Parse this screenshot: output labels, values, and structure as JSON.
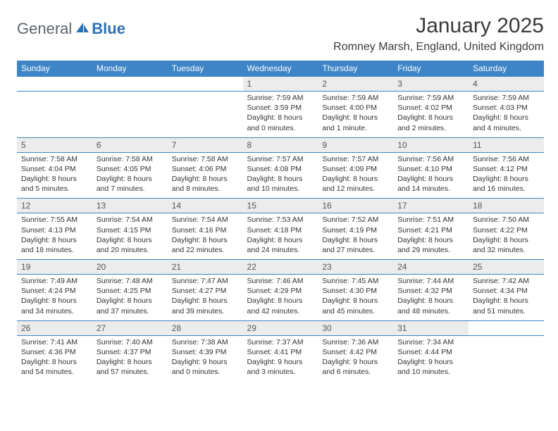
{
  "logo": {
    "part1": "General",
    "part2": "Blue"
  },
  "title": "January 2025",
  "location": "Romney Marsh, England, United Kingdom",
  "colors": {
    "header_bg": "#3d85c6",
    "header_text": "#ffffff",
    "daynum_bg": "#ececec",
    "border": "#3d85c6",
    "text": "#333333",
    "logo_gray": "#5a6670",
    "logo_blue": "#2d70b3"
  },
  "day_headers": [
    "Sunday",
    "Monday",
    "Tuesday",
    "Wednesday",
    "Thursday",
    "Friday",
    "Saturday"
  ],
  "weeks": [
    [
      null,
      null,
      null,
      {
        "n": "1",
        "sr": "7:59 AM",
        "ss": "3:59 PM",
        "dl": "8 hours and 0 minutes."
      },
      {
        "n": "2",
        "sr": "7:59 AM",
        "ss": "4:00 PM",
        "dl": "8 hours and 1 minute."
      },
      {
        "n": "3",
        "sr": "7:59 AM",
        "ss": "4:02 PM",
        "dl": "8 hours and 2 minutes."
      },
      {
        "n": "4",
        "sr": "7:59 AM",
        "ss": "4:03 PM",
        "dl": "8 hours and 4 minutes."
      }
    ],
    [
      {
        "n": "5",
        "sr": "7:58 AM",
        "ss": "4:04 PM",
        "dl": "8 hours and 5 minutes."
      },
      {
        "n": "6",
        "sr": "7:58 AM",
        "ss": "4:05 PM",
        "dl": "8 hours and 7 minutes."
      },
      {
        "n": "7",
        "sr": "7:58 AM",
        "ss": "4:06 PM",
        "dl": "8 hours and 8 minutes."
      },
      {
        "n": "8",
        "sr": "7:57 AM",
        "ss": "4:08 PM",
        "dl": "8 hours and 10 minutes."
      },
      {
        "n": "9",
        "sr": "7:57 AM",
        "ss": "4:09 PM",
        "dl": "8 hours and 12 minutes."
      },
      {
        "n": "10",
        "sr": "7:56 AM",
        "ss": "4:10 PM",
        "dl": "8 hours and 14 minutes."
      },
      {
        "n": "11",
        "sr": "7:56 AM",
        "ss": "4:12 PM",
        "dl": "8 hours and 16 minutes."
      }
    ],
    [
      {
        "n": "12",
        "sr": "7:55 AM",
        "ss": "4:13 PM",
        "dl": "8 hours and 18 minutes."
      },
      {
        "n": "13",
        "sr": "7:54 AM",
        "ss": "4:15 PM",
        "dl": "8 hours and 20 minutes."
      },
      {
        "n": "14",
        "sr": "7:54 AM",
        "ss": "4:16 PM",
        "dl": "8 hours and 22 minutes."
      },
      {
        "n": "15",
        "sr": "7:53 AM",
        "ss": "4:18 PM",
        "dl": "8 hours and 24 minutes."
      },
      {
        "n": "16",
        "sr": "7:52 AM",
        "ss": "4:19 PM",
        "dl": "8 hours and 27 minutes."
      },
      {
        "n": "17",
        "sr": "7:51 AM",
        "ss": "4:21 PM",
        "dl": "8 hours and 29 minutes."
      },
      {
        "n": "18",
        "sr": "7:50 AM",
        "ss": "4:22 PM",
        "dl": "8 hours and 32 minutes."
      }
    ],
    [
      {
        "n": "19",
        "sr": "7:49 AM",
        "ss": "4:24 PM",
        "dl": "8 hours and 34 minutes."
      },
      {
        "n": "20",
        "sr": "7:48 AM",
        "ss": "4:25 PM",
        "dl": "8 hours and 37 minutes."
      },
      {
        "n": "21",
        "sr": "7:47 AM",
        "ss": "4:27 PM",
        "dl": "8 hours and 39 minutes."
      },
      {
        "n": "22",
        "sr": "7:46 AM",
        "ss": "4:29 PM",
        "dl": "8 hours and 42 minutes."
      },
      {
        "n": "23",
        "sr": "7:45 AM",
        "ss": "4:30 PM",
        "dl": "8 hours and 45 minutes."
      },
      {
        "n": "24",
        "sr": "7:44 AM",
        "ss": "4:32 PM",
        "dl": "8 hours and 48 minutes."
      },
      {
        "n": "25",
        "sr": "7:42 AM",
        "ss": "4:34 PM",
        "dl": "8 hours and 51 minutes."
      }
    ],
    [
      {
        "n": "26",
        "sr": "7:41 AM",
        "ss": "4:36 PM",
        "dl": "8 hours and 54 minutes."
      },
      {
        "n": "27",
        "sr": "7:40 AM",
        "ss": "4:37 PM",
        "dl": "8 hours and 57 minutes."
      },
      {
        "n": "28",
        "sr": "7:38 AM",
        "ss": "4:39 PM",
        "dl": "9 hours and 0 minutes."
      },
      {
        "n": "29",
        "sr": "7:37 AM",
        "ss": "4:41 PM",
        "dl": "9 hours and 3 minutes."
      },
      {
        "n": "30",
        "sr": "7:36 AM",
        "ss": "4:42 PM",
        "dl": "9 hours and 6 minutes."
      },
      {
        "n": "31",
        "sr": "7:34 AM",
        "ss": "4:44 PM",
        "dl": "9 hours and 10 minutes."
      },
      null
    ]
  ],
  "labels": {
    "sunrise": "Sunrise: ",
    "sunset": "Sunset: ",
    "daylight": "Daylight: "
  }
}
